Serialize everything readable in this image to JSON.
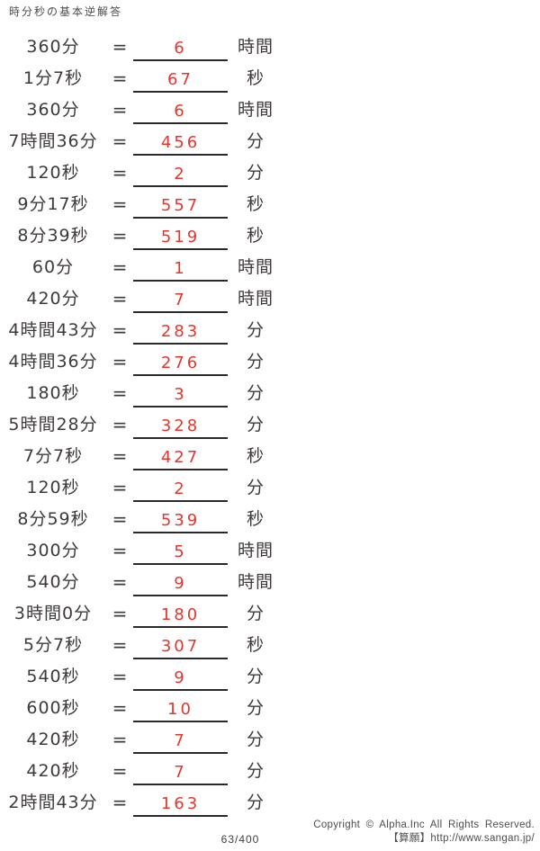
{
  "title": "時分秒の基本逆解答",
  "equals_sign": "=",
  "colors": {
    "ink": "#3e3a39",
    "answer": "#e8352c",
    "line": "#2b2a29",
    "muted": "#4f4d4c"
  },
  "rows": [
    {
      "question": "360分",
      "answer": "6",
      "unit": "時間"
    },
    {
      "question": "1分7秒",
      "answer": "67",
      "unit": "秒"
    },
    {
      "question": "360分",
      "answer": "6",
      "unit": "時間"
    },
    {
      "question": "7時間36分",
      "answer": "456",
      "unit": "分"
    },
    {
      "question": "120秒",
      "answer": "2",
      "unit": "分"
    },
    {
      "question": "9分17秒",
      "answer": "557",
      "unit": "秒"
    },
    {
      "question": "8分39秒",
      "answer": "519",
      "unit": "秒"
    },
    {
      "question": "60分",
      "answer": "1",
      "unit": "時間"
    },
    {
      "question": "420分",
      "answer": "7",
      "unit": "時間"
    },
    {
      "question": "4時間43分",
      "answer": "283",
      "unit": "分"
    },
    {
      "question": "4時間36分",
      "answer": "276",
      "unit": "分"
    },
    {
      "question": "180秒",
      "answer": "3",
      "unit": "分"
    },
    {
      "question": "5時間28分",
      "answer": "328",
      "unit": "分"
    },
    {
      "question": "7分7秒",
      "answer": "427",
      "unit": "秒"
    },
    {
      "question": "120秒",
      "answer": "2",
      "unit": "分"
    },
    {
      "question": "8分59秒",
      "answer": "539",
      "unit": "秒"
    },
    {
      "question": "300分",
      "answer": "5",
      "unit": "時間"
    },
    {
      "question": "540分",
      "answer": "9",
      "unit": "時間"
    },
    {
      "question": "3時間0分",
      "answer": "180",
      "unit": "分"
    },
    {
      "question": "5分7秒",
      "answer": "307",
      "unit": "秒"
    },
    {
      "question": "540秒",
      "answer": "9",
      "unit": "分"
    },
    {
      "question": "600秒",
      "answer": "10",
      "unit": "分"
    },
    {
      "question": "420秒",
      "answer": "7",
      "unit": "分"
    },
    {
      "question": "420秒",
      "answer": "7",
      "unit": "分"
    },
    {
      "question": "2時間43分",
      "answer": "163",
      "unit": "分"
    }
  ],
  "footer": {
    "page": "63/400",
    "copyright_line1": "Copyright © Alpha.Inc All Rights Reserved.",
    "copyright_line2": "【算願】http://www.sangan.jp/"
  }
}
